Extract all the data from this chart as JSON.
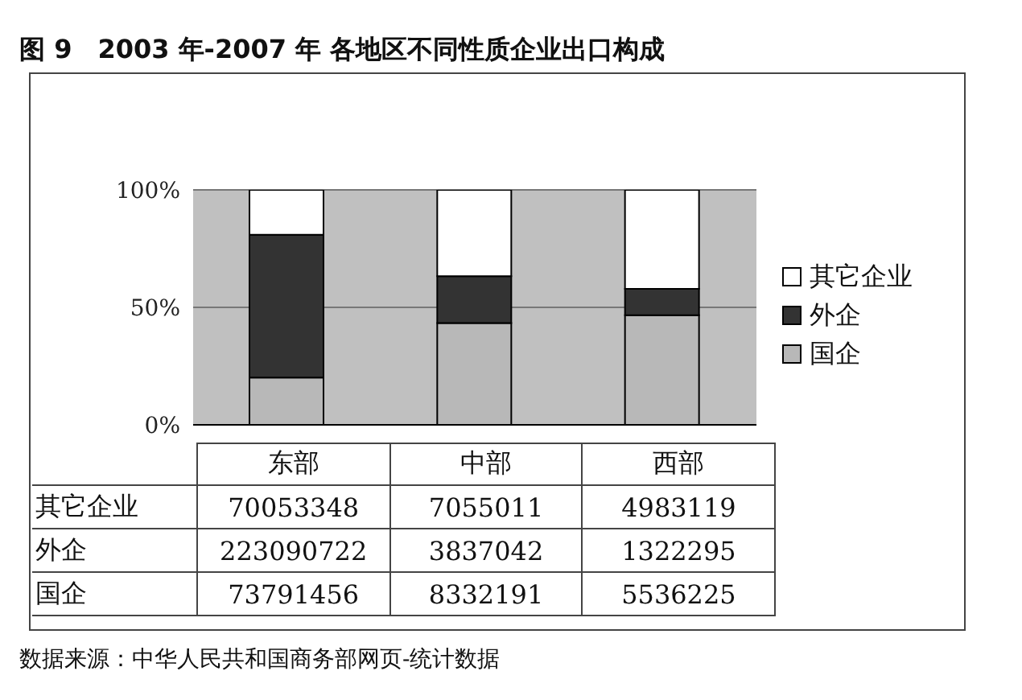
{
  "chart_data": [
    {
      "type": "bar",
      "title": "图 9　2003 年-2007 年 各地区不同性质企业出口构成",
      "categories": [
        null,
        null,
        null
      ],
      "stacked": true,
      "series": [
        {
          "name": "国企",
          "color": "#b8b8b8",
          "values": [
            20.1,
            43.3,
            46.7
          ]
        },
        {
          "name": "外企",
          "color": "#333333",
          "values": [
            60.8,
            20.0,
            11.2
          ]
        },
        {
          "name": "其它企业",
          "color": "#ffffff",
          "values": [
            19.1,
            36.7,
            42.1
          ]
        }
      ],
      "ylim": [
        0,
        100
      ],
      "yticks": [
        {
          "value": 0,
          "label": "0%"
        },
        {
          "value": 50,
          "label": "50%"
        },
        {
          "value": 100,
          "label": "100%"
        }
      ],
      "grid": "y",
      "legend": "right",
      "tick_labels": "y"
    },
    {
      "type": "other",
      "categories": [
        "东部",
        "中部",
        "西部"
      ],
      "data_labels": true,
      "series": [
        {
          "name": "其它企业",
          "values": [
            70053348,
            7055011,
            4983119
          ]
        },
        {
          "name": "外企",
          "values": [
            223090722,
            3837042,
            1322295
          ]
        },
        {
          "name": "国企",
          "values": [
            73791456,
            8332191,
            5536225
          ]
        }
      ],
      "annotations": [
        "数据来源：中华人民共和国商务部网页-统计数据"
      ]
    }
  ]
}
